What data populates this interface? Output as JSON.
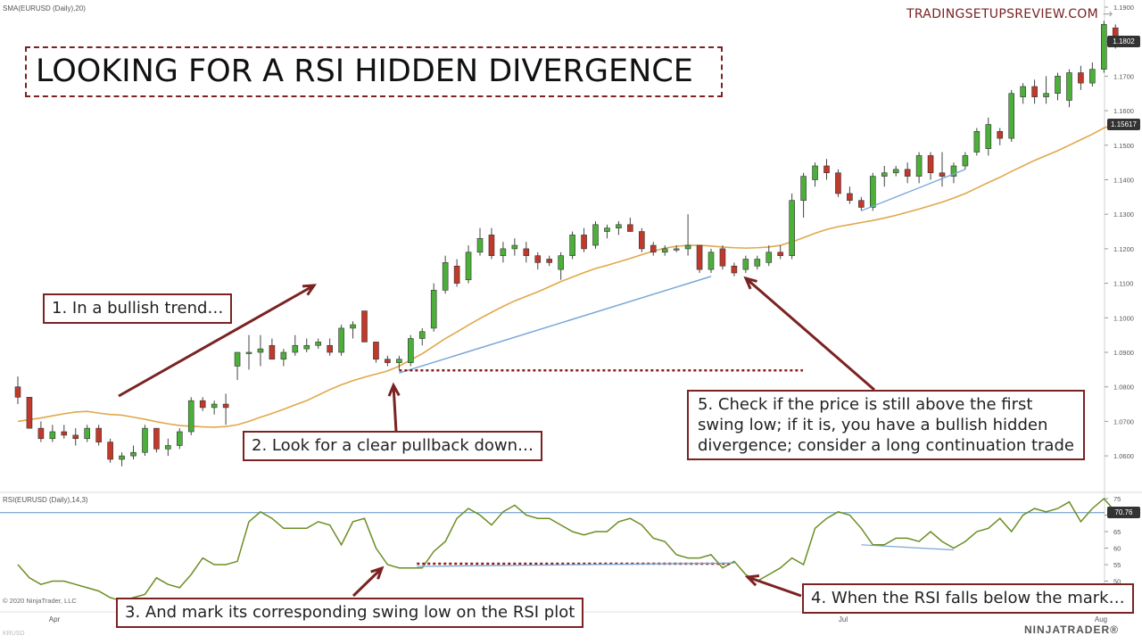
{
  "header": {
    "indicator_label": "SMA(EURUSD (Daily),20)",
    "watermark": "TRADINGSETUPSREVIEW.COM",
    "watermark_arrow": "→"
  },
  "title": "LOOKING FOR A RSI HIDDEN DIVERGENCE",
  "annotations": {
    "a1": "1. In a bullish trend…",
    "a2": "2. Look for a clear pullback down…",
    "a3": "3. And mark its corresponding swing low on the RSI plot",
    "a4": "4. When the RSI falls below the mark…",
    "a5_lines": [
      "5. Check if the price is still above the first",
      "swing low; if it is, you have a bullish hidden",
      "divergence; consider a long continuation trade"
    ]
  },
  "rsi_panel": {
    "label": "RSI(EURUSD (Daily),14,3)",
    "copyright": "© 2020 NinjaTrader, LLC",
    "side_label": "KRUSD"
  },
  "footer": {
    "x_labels": [
      "Apr",
      "Jul",
      "Aug"
    ],
    "bottom_left": "KRUSD",
    "logo": "NINJATRADER®"
  },
  "colors": {
    "bull": "#4caf3a",
    "bear": "#c0392b",
    "sma": "#e0a84a",
    "rsi": "#6b8e23",
    "trendline": "#7aa6d8",
    "annotation": "#7b2222",
    "level": "#5b8fc7"
  },
  "chart_data": [
    {
      "type": "candlestick",
      "series_name": "EURUSD (Daily)",
      "price_axis_ticks": [
        "1.1900",
        "1.1800",
        "1.1700",
        "1.1600",
        "1.1500",
        "1.1400",
        "1.1300",
        "1.1200",
        "1.1100",
        "1.1000",
        "1.0900",
        "1.0800",
        "1.0700",
        "1.0600"
      ],
      "price_tags": {
        "last_price": "1.1802",
        "sma_value": "1.15617"
      },
      "ohlc": [
        [
          1.08,
          1.083,
          1.075,
          1.077
        ],
        [
          1.077,
          1.077,
          1.068,
          1.068
        ],
        [
          1.068,
          1.07,
          1.064,
          1.065
        ],
        [
          1.065,
          1.069,
          1.064,
          1.067
        ],
        [
          1.067,
          1.069,
          1.065,
          1.066
        ],
        [
          1.066,
          1.068,
          1.063,
          1.065
        ],
        [
          1.065,
          1.069,
          1.064,
          1.068
        ],
        [
          1.068,
          1.069,
          1.063,
          1.064
        ],
        [
          1.064,
          1.065,
          1.058,
          1.059
        ],
        [
          1.059,
          1.061,
          1.057,
          1.06
        ],
        [
          1.06,
          1.063,
          1.059,
          1.061
        ],
        [
          1.061,
          1.069,
          1.06,
          1.068
        ],
        [
          1.068,
          1.068,
          1.061,
          1.062
        ],
        [
          1.062,
          1.065,
          1.06,
          1.063
        ],
        [
          1.063,
          1.068,
          1.062,
          1.067
        ],
        [
          1.067,
          1.077,
          1.066,
          1.076
        ],
        [
          1.076,
          1.077,
          1.073,
          1.074
        ],
        [
          1.074,
          1.076,
          1.072,
          1.075
        ],
        [
          1.075,
          1.078,
          1.069,
          1.074
        ],
        [
          1.086,
          1.089,
          1.082,
          1.09
        ],
        [
          1.09,
          1.095,
          1.085,
          1.09
        ],
        [
          1.09,
          1.095,
          1.086,
          1.091
        ],
        [
          1.092,
          1.094,
          1.088,
          1.088
        ],
        [
          1.088,
          1.091,
          1.086,
          1.09
        ],
        [
          1.09,
          1.095,
          1.089,
          1.092
        ],
        [
          1.091,
          1.094,
          1.09,
          1.092
        ],
        [
          1.092,
          1.094,
          1.091,
          1.093
        ],
        [
          1.092,
          1.094,
          1.089,
          1.09
        ],
        [
          1.09,
          1.098,
          1.089,
          1.097
        ],
        [
          1.097,
          1.099,
          1.094,
          1.098
        ],
        [
          1.102,
          1.102,
          1.093,
          1.093
        ],
        [
          1.093,
          1.093,
          1.087,
          1.088
        ],
        [
          1.088,
          1.089,
          1.086,
          1.087
        ],
        [
          1.087,
          1.089,
          1.085,
          1.088
        ],
        [
          1.087,
          1.095,
          1.086,
          1.094
        ],
        [
          1.094,
          1.097,
          1.092,
          1.096
        ],
        [
          1.097,
          1.11,
          1.096,
          1.108
        ],
        [
          1.108,
          1.118,
          1.107,
          1.116
        ],
        [
          1.115,
          1.117,
          1.109,
          1.11
        ],
        [
          1.111,
          1.121,
          1.11,
          1.119
        ],
        [
          1.119,
          1.126,
          1.118,
          1.123
        ],
        [
          1.124,
          1.126,
          1.117,
          1.118
        ],
        [
          1.118,
          1.122,
          1.116,
          1.12
        ],
        [
          1.12,
          1.123,
          1.118,
          1.121
        ],
        [
          1.12,
          1.122,
          1.116,
          1.118
        ],
        [
          1.118,
          1.119,
          1.114,
          1.116
        ],
        [
          1.117,
          1.118,
          1.115,
          1.116
        ],
        [
          1.114,
          1.119,
          1.111,
          1.118
        ],
        [
          1.118,
          1.125,
          1.117,
          1.124
        ],
        [
          1.124,
          1.126,
          1.119,
          1.12
        ],
        [
          1.121,
          1.128,
          1.12,
          1.127
        ],
        [
          1.125,
          1.127,
          1.123,
          1.126
        ],
        [
          1.126,
          1.128,
          1.124,
          1.127
        ],
        [
          1.127,
          1.129,
          1.125,
          1.125
        ],
        [
          1.125,
          1.126,
          1.119,
          1.12
        ],
        [
          1.121,
          1.122,
          1.118,
          1.119
        ],
        [
          1.119,
          1.121,
          1.118,
          1.12
        ],
        [
          1.12,
          1.121,
          1.119,
          1.12
        ],
        [
          1.12,
          1.13,
          1.118,
          1.121
        ],
        [
          1.121,
          1.121,
          1.113,
          1.114
        ],
        [
          1.114,
          1.12,
          1.113,
          1.119
        ],
        [
          1.12,
          1.121,
          1.114,
          1.115
        ],
        [
          1.115,
          1.116,
          1.112,
          1.113
        ],
        [
          1.114,
          1.118,
          1.113,
          1.117
        ],
        [
          1.115,
          1.118,
          1.114,
          1.117
        ],
        [
          1.116,
          1.121,
          1.115,
          1.119
        ],
        [
          1.119,
          1.121,
          1.117,
          1.118
        ],
        [
          1.118,
          1.136,
          1.117,
          1.134
        ],
        [
          1.134,
          1.142,
          1.129,
          1.141
        ],
        [
          1.14,
          1.145,
          1.138,
          1.144
        ],
        [
          1.144,
          1.146,
          1.14,
          1.142
        ],
        [
          1.142,
          1.143,
          1.135,
          1.136
        ],
        [
          1.136,
          1.138,
          1.133,
          1.134
        ],
        [
          1.134,
          1.135,
          1.131,
          1.132
        ],
        [
          1.132,
          1.142,
          1.131,
          1.141
        ],
        [
          1.141,
          1.144,
          1.138,
          1.142
        ],
        [
          1.142,
          1.144,
          1.141,
          1.143
        ],
        [
          1.143,
          1.145,
          1.139,
          1.141
        ],
        [
          1.141,
          1.148,
          1.139,
          1.147
        ],
        [
          1.147,
          1.148,
          1.14,
          1.142
        ],
        [
          1.142,
          1.148,
          1.138,
          1.141
        ],
        [
          1.141,
          1.145,
          1.139,
          1.144
        ],
        [
          1.144,
          1.148,
          1.143,
          1.147
        ],
        [
          1.148,
          1.155,
          1.147,
          1.154
        ],
        [
          1.149,
          1.158,
          1.147,
          1.156
        ],
        [
          1.154,
          1.155,
          1.15,
          1.152
        ],
        [
          1.152,
          1.166,
          1.151,
          1.165
        ],
        [
          1.164,
          1.168,
          1.162,
          1.167
        ],
        [
          1.167,
          1.169,
          1.162,
          1.164
        ],
        [
          1.164,
          1.17,
          1.162,
          1.165
        ],
        [
          1.165,
          1.171,
          1.163,
          1.17
        ],
        [
          1.163,
          1.172,
          1.161,
          1.171
        ],
        [
          1.171,
          1.173,
          1.166,
          1.168
        ],
        [
          1.168,
          1.174,
          1.167,
          1.172
        ],
        [
          1.172,
          1.186,
          1.171,
          1.185
        ],
        [
          1.184,
          1.185,
          1.178,
          1.18
        ]
      ],
      "sma": [
        1.07,
        1.0705,
        1.071,
        1.0716,
        1.0722,
        1.0727,
        1.0729,
        1.0724,
        1.072,
        1.0718,
        1.0712,
        1.0706,
        1.0699,
        1.0693,
        1.0688,
        1.0686,
        1.0684,
        1.0683,
        1.0685,
        1.069,
        1.07,
        1.0712,
        1.0723,
        1.0735,
        1.0748,
        1.076,
        1.0776,
        1.0792,
        1.0806,
        1.0818,
        1.0828,
        1.0837,
        1.0846,
        1.086,
        1.0878,
        1.0896,
        1.0918,
        1.094,
        1.0959,
        1.0979,
        1.0998,
        1.1016,
        1.1033,
        1.1049,
        1.1062,
        1.1075,
        1.109,
        1.1105,
        1.1118,
        1.1131,
        1.1143,
        1.1152,
        1.1162,
        1.1172,
        1.1183,
        1.1193,
        1.1202,
        1.1207,
        1.121,
        1.121,
        1.1208,
        1.1205,
        1.1203,
        1.1202,
        1.1203,
        1.1205,
        1.121,
        1.122,
        1.1232,
        1.1245,
        1.1256,
        1.1264,
        1.127,
        1.1276,
        1.1282,
        1.1289,
        1.1297,
        1.1306,
        1.1315,
        1.1325,
        1.1335,
        1.1347,
        1.136,
        1.1376,
        1.1392,
        1.1407,
        1.1424,
        1.144,
        1.1456,
        1.147,
        1.1484,
        1.15,
        1.1516,
        1.1532,
        1.155,
        1.1562
      ],
      "markers": {
        "pullback_low_index": 33,
        "pullback_low_price": 1.084,
        "second_low_index": 60,
        "second_low_price": 1.112,
        "later_trend_start_index": 73,
        "later_trend_end_index": 82
      }
    },
    {
      "type": "line",
      "series_name": "RSI(EURUSD (Daily),14,3)",
      "y_ticks": [
        75,
        70,
        65,
        60,
        55,
        50
      ],
      "level_line": 70.76,
      "level_tag": "70.76",
      "swing_mark_level": 55,
      "values": [
        55,
        51,
        49,
        50,
        50,
        49,
        48,
        47,
        45,
        44,
        45,
        46,
        51,
        49,
        48,
        52,
        57,
        55,
        55,
        56,
        68,
        71,
        69,
        66,
        66,
        66,
        68,
        67,
        61,
        68,
        69,
        60,
        55,
        54,
        54,
        54,
        59,
        62,
        69,
        72,
        70,
        67,
        71,
        73,
        70,
        69,
        69,
        67,
        65,
        64,
        65,
        65,
        68,
        69,
        67,
        63,
        62,
        58,
        57,
        57,
        58,
        54,
        56,
        52,
        50,
        52,
        54,
        57,
        55,
        66,
        69,
        71,
        70,
        66,
        61,
        61,
        63,
        63,
        62,
        65,
        62,
        60,
        62,
        65,
        66,
        69,
        65,
        70,
        72,
        71,
        72,
        74,
        68,
        72,
        75,
        71
      ]
    }
  ]
}
